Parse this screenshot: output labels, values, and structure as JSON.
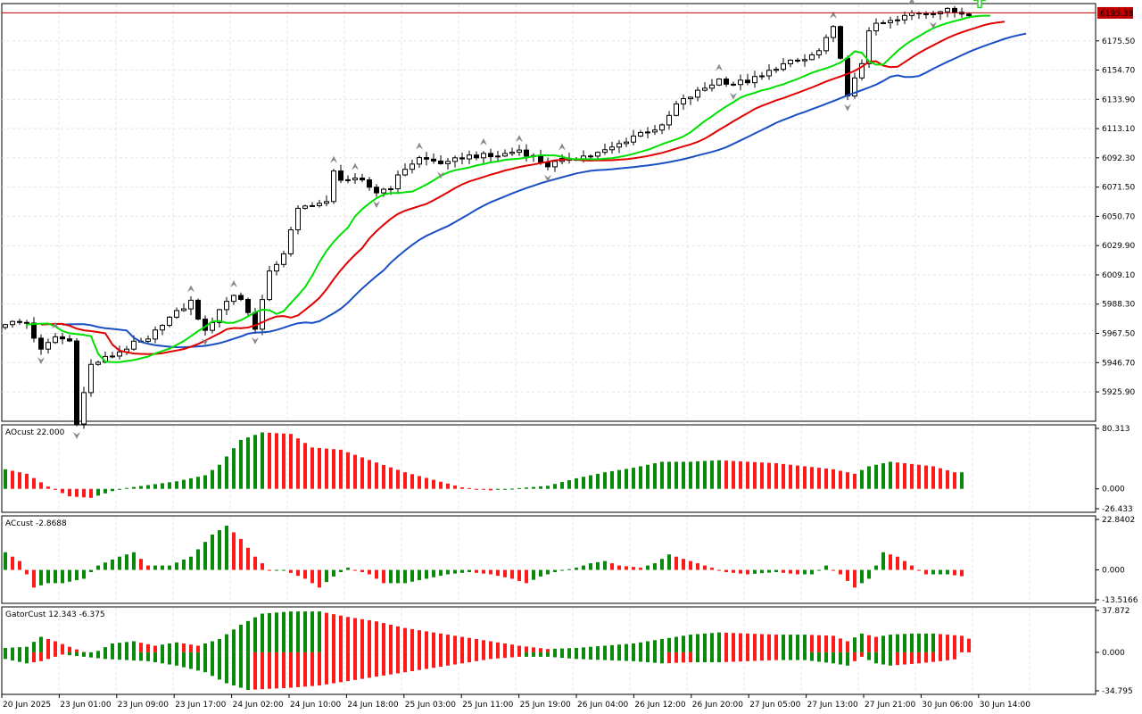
{
  "colors": {
    "background": "#ffffff",
    "grid": "#e4e4e4",
    "candle_up": "#ffffff",
    "candle_down": "#000000",
    "jaw": "#1a4fc4",
    "teeth": "#e00000",
    "lips": "#00e000",
    "histo_up": "#0a8a0a",
    "histo_down": "#ff1a1a",
    "price_line": "#c00000",
    "price_tag_bg": "#c00000",
    "price_tag_text": "#ffffff",
    "fractal": "#8a8a8a",
    "arrow_up": "#22cc22"
  },
  "main": {
    "price_tag": "6195.38",
    "y_ticks": [
      "6175.50",
      "6154.70",
      "6133.90",
      "6113.10",
      "6092.30",
      "6071.50",
      "6050.70",
      "6029.90",
      "6009.10",
      "5988.30",
      "5967.50",
      "5946.70",
      "5925.90"
    ]
  },
  "ao": {
    "title": "AOcust 22.000",
    "y_ticks": [
      "80.313",
      "0.000",
      "-26.433"
    ]
  },
  "ac": {
    "title": "ACcust -2.8688",
    "y_ticks": [
      "22.8402",
      "0.000",
      "-13.5166"
    ]
  },
  "gator": {
    "title": "GatorCust 12.343 -6.375",
    "y_ticks": [
      "37.872",
      "0.000",
      "-34.795"
    ]
  },
  "x_labels": [
    "20 Jun 2025",
    "23 Jun 01:00",
    "23 Jun 09:00",
    "23 Jun 17:00",
    "24 Jun 02:00",
    "24 Jun 10:00",
    "24 Jun 18:00",
    "25 Jun 03:00",
    "25 Jun 11:00",
    "25 Jun 19:00",
    "26 Jun 04:00",
    "26 Jun 12:00",
    "26 Jun 20:00",
    "27 Jun 05:00",
    "27 Jun 13:00",
    "27 Jun 21:00",
    "30 Jun 06:00",
    "30 Jun 14:00"
  ],
  "chart_data": {
    "type": "candlestick",
    "price_range": [
      5905,
      6202
    ],
    "current_price": 6195.38,
    "price_anchors": [
      [
        0,
        5975
      ],
      [
        3,
        5975
      ],
      [
        5,
        5955
      ],
      [
        7,
        5965
      ],
      [
        9,
        5962
      ],
      [
        10,
        5905
      ],
      [
        12,
        5945
      ],
      [
        15,
        5952
      ],
      [
        18,
        5960
      ],
      [
        20,
        5962
      ],
      [
        22,
        5975
      ],
      [
        24,
        5982
      ],
      [
        26,
        5990
      ],
      [
        28,
        5968
      ],
      [
        30,
        5985
      ],
      [
        32,
        5995
      ],
      [
        33,
        5992
      ],
      [
        34,
        5982
      ],
      [
        35,
        5972
      ],
      [
        37,
        6010
      ],
      [
        39,
        6025
      ],
      [
        41,
        6055
      ],
      [
        43,
        6060
      ],
      [
        45,
        6060
      ],
      [
        46,
        6082
      ],
      [
        47,
        6078
      ],
      [
        50,
        6075
      ],
      [
        52,
        6068
      ],
      [
        54,
        6072
      ],
      [
        56,
        6085
      ],
      [
        58,
        6092
      ],
      [
        60,
        6090
      ],
      [
        62,
        6088
      ],
      [
        64,
        6093
      ],
      [
        66,
        6094
      ],
      [
        68,
        6093
      ],
      [
        70,
        6095
      ],
      [
        72,
        6098
      ],
      [
        74,
        6093
      ],
      [
        76,
        6087
      ],
      [
        78,
        6090
      ],
      [
        80,
        6093
      ],
      [
        82,
        6094
      ],
      [
        84,
        6097
      ],
      [
        86,
        6102
      ],
      [
        88,
        6108
      ],
      [
        90,
        6112
      ],
      [
        92,
        6114
      ],
      [
        94,
        6130
      ],
      [
        96,
        6136
      ],
      [
        98,
        6142
      ],
      [
        100,
        6148
      ],
      [
        102,
        6145
      ],
      [
        104,
        6147
      ],
      [
        106,
        6150
      ],
      [
        108,
        6157
      ],
      [
        110,
        6160
      ],
      [
        112,
        6162
      ],
      [
        114,
        6168
      ],
      [
        116,
        6184
      ],
      [
        117,
        6165
      ],
      [
        118,
        6135
      ],
      [
        120,
        6160
      ],
      [
        121,
        6184
      ],
      [
        123,
        6188
      ],
      [
        125,
        6190
      ],
      [
        127,
        6195
      ],
      [
        129,
        6196
      ],
      [
        132,
        6197
      ],
      [
        134,
        6195.38
      ]
    ],
    "ao_range": [
      -26.433,
      80.313
    ],
    "ao_anchors": [
      [
        0,
        26
      ],
      [
        3,
        20
      ],
      [
        6,
        3
      ],
      [
        9,
        -10
      ],
      [
        12,
        -12
      ],
      [
        16,
        0
      ],
      [
        20,
        5
      ],
      [
        24,
        10
      ],
      [
        28,
        18
      ],
      [
        30,
        32
      ],
      [
        33,
        65
      ],
      [
        36,
        75
      ],
      [
        40,
        73
      ],
      [
        43,
        55
      ],
      [
        47,
        52
      ],
      [
        52,
        35
      ],
      [
        56,
        22
      ],
      [
        60,
        12
      ],
      [
        64,
        2
      ],
      [
        68,
        -2
      ],
      [
        72,
        1
      ],
      [
        76,
        4
      ],
      [
        80,
        14
      ],
      [
        84,
        22
      ],
      [
        88,
        28
      ],
      [
        92,
        36
      ],
      [
        96,
        36
      ],
      [
        100,
        38
      ],
      [
        104,
        36
      ],
      [
        108,
        34
      ],
      [
        112,
        30
      ],
      [
        116,
        26
      ],
      [
        119,
        20
      ],
      [
        121,
        30
      ],
      [
        124,
        36
      ],
      [
        127,
        33
      ],
      [
        130,
        30
      ],
      [
        133,
        22
      ],
      [
        134,
        22
      ]
    ],
    "ac_range": [
      -13.5166,
      22.8402
    ],
    "ac_anchors": [
      [
        0,
        8
      ],
      [
        2,
        4
      ],
      [
        4,
        -8
      ],
      [
        6,
        -6
      ],
      [
        8,
        -6
      ],
      [
        11,
        -4
      ],
      [
        13,
        2
      ],
      [
        16,
        6
      ],
      [
        18,
        8
      ],
      [
        20,
        2
      ],
      [
        23,
        2
      ],
      [
        26,
        6
      ],
      [
        29,
        16
      ],
      [
        31,
        20
      ],
      [
        33,
        14
      ],
      [
        35,
        6
      ],
      [
        37,
        0
      ],
      [
        39,
        0
      ],
      [
        42,
        -4
      ],
      [
        44,
        -8
      ],
      [
        46,
        -3
      ],
      [
        48,
        1
      ],
      [
        51,
        -2
      ],
      [
        53,
        -6
      ],
      [
        56,
        -6
      ],
      [
        59,
        -4
      ],
      [
        62,
        -2
      ],
      [
        65,
        -1
      ],
      [
        68,
        -2
      ],
      [
        71,
        -4
      ],
      [
        73,
        -6
      ],
      [
        75,
        -3
      ],
      [
        77,
        -1
      ],
      [
        80,
        1
      ],
      [
        82,
        3
      ],
      [
        84,
        4
      ],
      [
        86,
        2
      ],
      [
        89,
        1
      ],
      [
        91,
        3
      ],
      [
        93,
        7
      ],
      [
        95,
        5
      ],
      [
        98,
        2
      ],
      [
        101,
        -1
      ],
      [
        104,
        -2
      ],
      [
        108,
        -1
      ],
      [
        111,
        -2
      ],
      [
        113,
        -2
      ],
      [
        115,
        2
      ],
      [
        117,
        -2
      ],
      [
        119,
        -8
      ],
      [
        121,
        -4
      ],
      [
        123,
        8
      ],
      [
        125,
        6
      ],
      [
        127,
        2
      ],
      [
        129,
        -2
      ],
      [
        132,
        -2
      ],
      [
        134,
        -2.8688
      ]
    ],
    "gator_range": [
      -34.795,
      37.872
    ],
    "gator_upper_anchors": [
      [
        0,
        4
      ],
      [
        3,
        5
      ],
      [
        5,
        14
      ],
      [
        7,
        10
      ],
      [
        9,
        5
      ],
      [
        12,
        -2
      ],
      [
        15,
        8
      ],
      [
        18,
        10
      ],
      [
        21,
        6
      ],
      [
        24,
        9
      ],
      [
        27,
        6
      ],
      [
        30,
        12
      ],
      [
        33,
        25
      ],
      [
        36,
        35
      ],
      [
        40,
        37
      ],
      [
        44,
        37
      ],
      [
        48,
        32
      ],
      [
        52,
        28
      ],
      [
        56,
        22
      ],
      [
        60,
        18
      ],
      [
        64,
        14
      ],
      [
        68,
        10
      ],
      [
        72,
        6
      ],
      [
        76,
        3
      ],
      [
        80,
        4
      ],
      [
        84,
        6
      ],
      [
        88,
        8
      ],
      [
        92,
        12
      ],
      [
        96,
        16
      ],
      [
        100,
        18
      ],
      [
        104,
        17
      ],
      [
        108,
        16
      ],
      [
        112,
        16
      ],
      [
        116,
        15
      ],
      [
        118,
        10
      ],
      [
        120,
        17
      ],
      [
        122,
        14
      ],
      [
        124,
        16
      ],
      [
        127,
        17
      ],
      [
        130,
        17
      ],
      [
        134,
        15
      ],
      [
        135,
        12.343
      ]
    ],
    "gator_lower_anchors": [
      [
        0,
        -6
      ],
      [
        3,
        -10
      ],
      [
        5,
        -8
      ],
      [
        8,
        -2
      ],
      [
        11,
        -4
      ],
      [
        14,
        -6
      ],
      [
        17,
        -7
      ],
      [
        20,
        -8
      ],
      [
        24,
        -12
      ],
      [
        28,
        -18
      ],
      [
        31,
        -28
      ],
      [
        34,
        -34
      ],
      [
        37,
        -33
      ],
      [
        40,
        -32
      ],
      [
        44,
        -30
      ],
      [
        48,
        -26
      ],
      [
        52,
        -22
      ],
      [
        56,
        -18
      ],
      [
        60,
        -14
      ],
      [
        64,
        -10
      ],
      [
        68,
        -6
      ],
      [
        72,
        -4
      ],
      [
        76,
        -4
      ],
      [
        80,
        -6
      ],
      [
        84,
        -7
      ],
      [
        88,
        -8
      ],
      [
        92,
        -10
      ],
      [
        96,
        -9
      ],
      [
        100,
        -9
      ],
      [
        104,
        -8
      ],
      [
        108,
        -7
      ],
      [
        112,
        -7
      ],
      [
        116,
        -10
      ],
      [
        118,
        -12
      ],
      [
        120,
        -4
      ],
      [
        122,
        -10
      ],
      [
        124,
        -12
      ],
      [
        128,
        -10
      ],
      [
        131,
        -8
      ],
      [
        133,
        -6.375
      ]
    ]
  }
}
